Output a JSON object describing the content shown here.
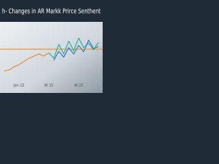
{
  "chart_data": {
    "type": "line",
    "title": "h- Changes in AR Markk Prirce Senthent",
    "categories": [
      null,
      null,
      null,
      "Jan 15",
      null,
      null,
      null,
      null,
      null,
      "W 15",
      null,
      null,
      null,
      null,
      null,
      "W 25",
      null,
      null,
      null,
      null
    ],
    "series": [
      {
        "color": "#e8913a",
        "values": [
          18,
          20,
          26,
          30,
          36,
          42,
          46,
          50,
          46,
          52,
          null,
          null,
          null,
          null,
          null,
          null,
          null,
          null,
          null,
          null
        ]
      },
      {
        "color": "#2fb3a0",
        "values": [
          null,
          null,
          null,
          null,
          null,
          null,
          null,
          null,
          null,
          52,
          42,
          68,
          50,
          74,
          56,
          80,
          62,
          70,
          58,
          72
        ]
      },
      {
        "color": "#3d7fc4",
        "values": [
          null,
          null,
          null,
          null,
          null,
          null,
          null,
          null,
          null,
          null,
          38,
          55,
          44,
          62,
          50,
          66,
          54,
          76,
          60,
          64
        ]
      }
    ],
    "ylim": [
      0,
      100
    ],
    "ref_line": {
      "value": 59,
      "color": "#e8913a"
    },
    "grid": false
  }
}
